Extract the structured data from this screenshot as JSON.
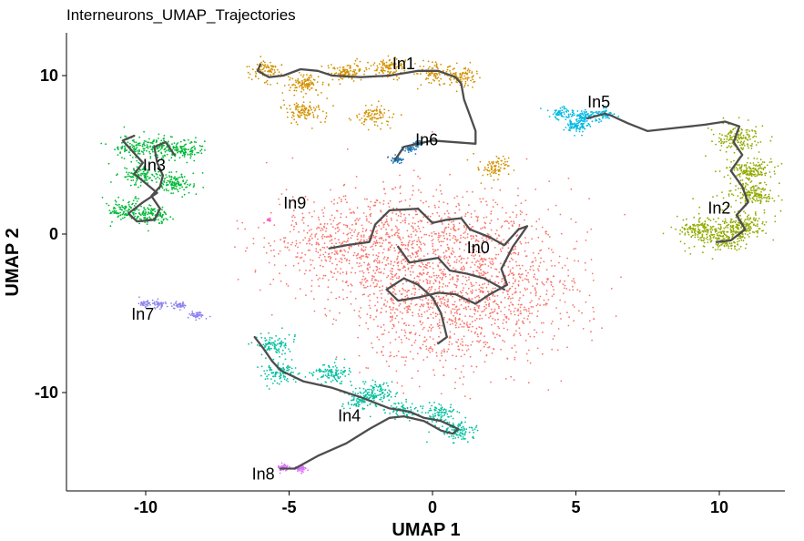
{
  "chart_data": {
    "type": "scatter",
    "title": "Interneurons_UMAP_Trajectories",
    "xlabel": "UMAP 1",
    "ylabel": "UMAP 2",
    "xlim": [
      -13,
      12.5
    ],
    "ylim": [
      -16,
      12.5
    ],
    "grid": false,
    "x_ticks": [
      {
        "value": -10,
        "label": "-10"
      },
      {
        "value": -5,
        "label": "-5"
      },
      {
        "value": 0,
        "label": "0"
      },
      {
        "value": 5,
        "label": "5"
      },
      {
        "value": 10,
        "label": "10"
      }
    ],
    "y_ticks": [
      {
        "value": 10,
        "label": "10"
      },
      {
        "value": 0,
        "label": "0"
      },
      {
        "value": -10,
        "label": "-10"
      }
    ],
    "clusters": [
      {
        "name": "In0",
        "color": "#F8766D",
        "label_pos": [
          1.2,
          -1.2
        ],
        "spread": 3.0,
        "n": 2400,
        "centers": [
          [
            -2.8,
            -1.2
          ],
          [
            -1.5,
            0.8
          ],
          [
            0,
            -0.5
          ],
          [
            1.5,
            0.5
          ],
          [
            2.5,
            -2
          ],
          [
            0.5,
            -3.5
          ],
          [
            -1,
            -4.5
          ],
          [
            1.5,
            -5
          ],
          [
            3,
            -4
          ],
          [
            0.5,
            -7
          ],
          [
            -1.5,
            -2
          ],
          [
            -3.8,
            -0.3
          ]
        ]
      },
      {
        "name": "In1",
        "color": "#D39200",
        "label_pos": [
          -1.4,
          10.4
        ],
        "spread": 0.7,
        "n": 900,
        "centers": [
          [
            -5.8,
            10.3
          ],
          [
            -4.5,
            9.5
          ],
          [
            -3,
            10.2
          ],
          [
            -1.5,
            10.5
          ],
          [
            0,
            10.2
          ],
          [
            1,
            10
          ],
          [
            -4.5,
            7.7
          ],
          [
            -2,
            7.5
          ],
          [
            2.2,
            4.2
          ]
        ]
      },
      {
        "name": "In2",
        "color": "#93AA00",
        "label_pos": [
          9.6,
          1.3
        ],
        "spread": 0.9,
        "n": 1000,
        "centers": [
          [
            10.6,
            6.0
          ],
          [
            11.1,
            4
          ],
          [
            11.2,
            2.5
          ],
          [
            10.8,
            0.6
          ],
          [
            10.2,
            -0.3
          ],
          [
            9.3,
            0.3
          ]
        ]
      },
      {
        "name": "In3",
        "color": "#00BA38",
        "label_pos": [
          -10.1,
          4.0
        ],
        "spread": 0.7,
        "n": 800,
        "centers": [
          [
            -10.5,
            5.5
          ],
          [
            -9.5,
            5.5
          ],
          [
            -10.2,
            3.8
          ],
          [
            -9,
            3.2
          ],
          [
            -10.7,
            1.5
          ],
          [
            -9.8,
            1.2
          ],
          [
            -8.6,
            5.3
          ]
        ]
      },
      {
        "name": "In4",
        "color": "#00C19F",
        "label_pos": [
          -3.3,
          -11.8
        ],
        "spread": 0.7,
        "n": 800,
        "centers": [
          [
            -5.5,
            -7
          ],
          [
            -5.3,
            -8.8
          ],
          [
            -3.5,
            -8.8
          ],
          [
            -2.5,
            -10.5
          ],
          [
            -1,
            -11.2
          ],
          [
            0.3,
            -11.3
          ],
          [
            0.9,
            -12.4
          ],
          [
            -2,
            -10
          ]
        ]
      },
      {
        "name": "In5",
        "color": "#00B9E3",
        "label_pos": [
          5.4,
          8.0
        ],
        "spread": 0.45,
        "n": 300,
        "centers": [
          [
            5.3,
            7.4
          ],
          [
            4.5,
            7.6
          ],
          [
            6,
            7.6
          ],
          [
            5,
            6.8
          ]
        ]
      },
      {
        "name": "In6",
        "color": "#1F78B4",
        "label_pos": [
          -0.6,
          5.6
        ],
        "spread": 0.2,
        "n": 150,
        "centers": [
          [
            -1.2,
            4.7
          ],
          [
            -0.8,
            5.4
          ],
          [
            -0.5,
            5.7
          ]
        ]
      },
      {
        "name": "In7",
        "color": "#8E86EF",
        "label_pos": [
          -10.5,
          -5.4
        ],
        "spread": 0.25,
        "n": 180,
        "centers": [
          [
            -10,
            -4.4
          ],
          [
            -9.5,
            -4.4
          ],
          [
            -8.8,
            -4.5
          ],
          [
            -8.2,
            -5.1
          ]
        ]
      },
      {
        "name": "In8",
        "color": "#DB72FB",
        "label_pos": [
          -6.3,
          -15.5
        ],
        "spread": 0.2,
        "n": 110,
        "centers": [
          [
            -5.2,
            -14.7
          ],
          [
            -4.6,
            -14.8
          ]
        ]
      },
      {
        "name": "In9",
        "color": "#FF61C3",
        "label_pos": [
          -5.2,
          1.6
        ],
        "spread": 0.08,
        "n": 25,
        "centers": [
          [
            -5.7,
            0.9
          ]
        ]
      }
    ],
    "trajectories": [
      [
        [
          -6,
          10.7
        ],
        [
          -6.1,
          10.3
        ],
        [
          -5.7,
          9.9
        ],
        [
          -5.2,
          10
        ],
        [
          -4.6,
          10.4
        ],
        [
          -4,
          10.3
        ],
        [
          -3.5,
          10
        ],
        [
          -2.5,
          9.9
        ],
        [
          -1.5,
          10
        ],
        [
          -0.5,
          10.3
        ],
        [
          0.2,
          10.3
        ],
        [
          0.8,
          9.9
        ],
        [
          1,
          9.5
        ],
        [
          1.1,
          8.5
        ],
        [
          1.3,
          7.5
        ],
        [
          1.5,
          6.5
        ],
        [
          1.5,
          5.7
        ],
        [
          0,
          5.9
        ],
        [
          -1,
          5.5
        ],
        [
          -1.3,
          4.7
        ]
      ],
      [
        [
          -10.4,
          6.2
        ],
        [
          -10.8,
          5.9
        ],
        [
          -10.5,
          5.3
        ],
        [
          -10.1,
          4.5
        ],
        [
          -10.4,
          3.8
        ],
        [
          -10,
          3.2
        ],
        [
          -9.6,
          2.6
        ],
        [
          -10.1,
          2
        ],
        [
          -10.6,
          1.3
        ],
        [
          -10.3,
          0.8
        ],
        [
          -9.7,
          0.9
        ],
        [
          -9.5,
          1.6
        ],
        [
          -9.8,
          2.4
        ],
        [
          -9.5,
          3
        ],
        [
          -9.4,
          3.7
        ],
        [
          -9.6,
          4.5
        ],
        [
          -9.7,
          5.5
        ],
        [
          -9.3,
          5.8
        ],
        [
          -9,
          5
        ]
      ],
      [
        [
          -3.6,
          -0.9
        ],
        [
          -3,
          -0.7
        ],
        [
          -2.2,
          -0.5
        ],
        [
          -2,
          0.6
        ],
        [
          -1.5,
          1.5
        ],
        [
          -0.5,
          1.6
        ],
        [
          0,
          0.7
        ],
        [
          0.5,
          0.9
        ],
        [
          1,
          1
        ],
        [
          1.3,
          0.3
        ],
        [
          2,
          -0.2
        ],
        [
          2.5,
          -0.7
        ],
        [
          3,
          0.3
        ],
        [
          3.3,
          0.5
        ],
        [
          2.8,
          -0.8
        ],
        [
          2.4,
          -2.2
        ],
        [
          2.6,
          -3.2
        ],
        [
          2,
          -3.8
        ],
        [
          1.5,
          -4.4
        ],
        [
          0.8,
          -3.8
        ],
        [
          0.2,
          -3.7
        ],
        [
          -0.5,
          -4
        ],
        [
          -1.2,
          -4.2
        ],
        [
          -1.6,
          -3.5
        ],
        [
          -1,
          -2.8
        ],
        [
          -0.5,
          -3.2
        ],
        [
          0,
          -4
        ],
        [
          0.3,
          -5
        ],
        [
          0.5,
          -6.5
        ],
        [
          0.2,
          -6.9
        ]
      ],
      [
        [
          -1.2,
          -0.8
        ],
        [
          -0.8,
          -1.8
        ],
        [
          0.2,
          -1.5
        ],
        [
          0.6,
          -2.3
        ],
        [
          1.2,
          -2.5
        ],
        [
          1.8,
          -2.8
        ],
        [
          2.5,
          -3.5
        ]
      ],
      [
        [
          6.2,
          7.5
        ],
        [
          6.8,
          7.0
        ],
        [
          7.5,
          6.5
        ],
        [
          8.5,
          6.7
        ],
        [
          9.5,
          6.9
        ],
        [
          10.2,
          7.1
        ],
        [
          10.7,
          6.8
        ],
        [
          10.5,
          5.8
        ],
        [
          10.8,
          5
        ],
        [
          10.4,
          4
        ],
        [
          10.8,
          3
        ],
        [
          11,
          2
        ],
        [
          10.6,
          1.2
        ],
        [
          10.9,
          0.3
        ],
        [
          10.4,
          -0.4
        ],
        [
          9.9,
          -0.5
        ]
      ],
      [
        [
          5.4,
          7.3
        ],
        [
          6,
          7.6
        ],
        [
          6.2,
          7.5
        ]
      ],
      [
        [
          -6.2,
          -6.5
        ],
        [
          -5.9,
          -7.2
        ],
        [
          -5.6,
          -8
        ],
        [
          -5.3,
          -8.6
        ],
        [
          -4.5,
          -9.3
        ],
        [
          -3.5,
          -9.7
        ],
        [
          -2.5,
          -10.3
        ],
        [
          -1.5,
          -11
        ],
        [
          -0.8,
          -11.2
        ],
        [
          -0.3,
          -11.6
        ],
        [
          0.3,
          -11.8
        ],
        [
          0.9,
          -12.3
        ],
        [
          0.7,
          -12.6
        ],
        [
          0.3,
          -12.4
        ],
        [
          -0.3,
          -11.8
        ],
        [
          -1,
          -11.5
        ],
        [
          -1.5,
          -11.6
        ],
        [
          -2.2,
          -12.3
        ],
        [
          -3,
          -13.2
        ],
        [
          -4,
          -14
        ],
        [
          -4.8,
          -14.8
        ],
        [
          -5.3,
          -14.8
        ]
      ]
    ],
    "track_color": "#4D4D4D",
    "annotations": [
      "In0",
      "In1",
      "In2",
      "In3",
      "In4",
      "In5",
      "In6",
      "In7",
      "In8",
      "In9"
    ]
  }
}
